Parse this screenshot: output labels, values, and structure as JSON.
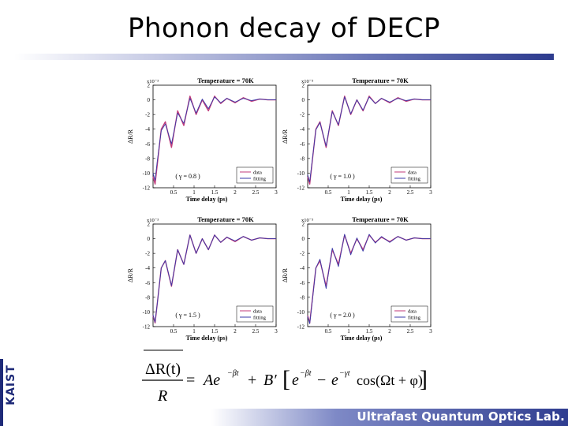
{
  "slide": {
    "title": "Phonon decay of DECP",
    "side_label": "KAIST",
    "footer": "Ultrafast Quantum Optics Lab."
  },
  "figure": {
    "panel_title": "Temperature = 70K",
    "xlabel": "Time delay (ps)",
    "ylabel": "ΔR/R",
    "exponent": "x10⁻³",
    "x_ticks": [
      "0.5",
      "1",
      "1.5",
      "2",
      "2.5",
      "3"
    ],
    "y_ticks": [
      "2",
      "0",
      "-2",
      "-4",
      "-6",
      "-8",
      "-10",
      "-12"
    ],
    "panels": [
      {
        "gamma_label": "( γ = 0.8 )",
        "legend": [
          "data",
          "fitting"
        ]
      },
      {
        "gamma_label": "( γ = 1.0 )",
        "legend": [
          "data",
          "fitting"
        ]
      },
      {
        "gamma_label": "( γ = 1.5 )",
        "legend": [
          "data",
          "fitting"
        ]
      },
      {
        "gamma_label": "( γ = 2.0 )",
        "legend": [
          "data",
          "fitting"
        ]
      }
    ]
  },
  "chart_data": [
    {
      "type": "line",
      "title": "Temperature = 70K",
      "xlabel": "Time delay (ps)",
      "ylabel": "ΔR/R (x10⁻³)",
      "xlim": [
        0,
        3
      ],
      "ylim": [
        -12,
        2
      ],
      "annotation": "( γ = 0.8 )",
      "series": [
        {
          "name": "data",
          "color": "#c03a7a",
          "x": [
            0.0,
            0.05,
            0.1,
            0.2,
            0.3,
            0.45,
            0.6,
            0.75,
            0.9,
            1.05,
            1.2,
            1.35,
            1.5,
            1.65,
            1.8,
            2.0,
            2.2,
            2.4,
            2.6,
            2.8,
            3.0
          ],
          "y": [
            -10.5,
            -11.5,
            -9.0,
            -4.0,
            -3.0,
            -6.5,
            -1.5,
            -3.5,
            0.5,
            -2.0,
            0.0,
            -1.5,
            0.5,
            -0.5,
            0.2,
            -0.4,
            0.3,
            -0.2,
            0.1,
            0.0,
            0.0
          ]
        },
        {
          "name": "fitting",
          "color": "#3a3aa8",
          "x": [
            0.0,
            0.05,
            0.1,
            0.2,
            0.3,
            0.45,
            0.6,
            0.75,
            0.9,
            1.05,
            1.2,
            1.35,
            1.5,
            1.65,
            1.8,
            2.0,
            2.2,
            2.4,
            2.6,
            2.8,
            3.0
          ],
          "y": [
            -10.0,
            -11.0,
            -8.5,
            -4.2,
            -3.3,
            -6.0,
            -1.8,
            -3.2,
            0.2,
            -1.8,
            0.1,
            -1.2,
            0.4,
            -0.4,
            0.2,
            -0.3,
            0.2,
            -0.1,
            0.1,
            0.0,
            0.0
          ]
        }
      ]
    },
    {
      "type": "line",
      "title": "Temperature = 70K",
      "xlabel": "Time delay (ps)",
      "ylabel": "ΔR/R (x10⁻³)",
      "xlim": [
        0,
        3
      ],
      "ylim": [
        -12,
        2
      ],
      "annotation": "( γ = 1.0 )",
      "series": [
        {
          "name": "data",
          "color": "#c03a7a",
          "x": [
            0.0,
            0.05,
            0.1,
            0.2,
            0.3,
            0.45,
            0.6,
            0.75,
            0.9,
            1.05,
            1.2,
            1.35,
            1.5,
            1.65,
            1.8,
            2.0,
            2.2,
            2.4,
            2.6,
            2.8,
            3.0
          ],
          "y": [
            -10.5,
            -11.5,
            -9.0,
            -4.0,
            -3.0,
            -6.5,
            -1.5,
            -3.5,
            0.5,
            -2.0,
            0.0,
            -1.5,
            0.5,
            -0.5,
            0.2,
            -0.4,
            0.3,
            -0.2,
            0.1,
            0.0,
            0.0
          ]
        },
        {
          "name": "fitting",
          "color": "#3a3aa8",
          "x": [
            0.0,
            0.05,
            0.1,
            0.2,
            0.3,
            0.45,
            0.6,
            0.75,
            0.9,
            1.05,
            1.2,
            1.35,
            1.5,
            1.65,
            1.8,
            2.0,
            2.2,
            2.4,
            2.6,
            2.8,
            3.0
          ],
          "y": [
            -10.2,
            -11.2,
            -8.8,
            -4.1,
            -3.1,
            -6.3,
            -1.6,
            -3.4,
            0.4,
            -1.9,
            0.0,
            -1.4,
            0.4,
            -0.5,
            0.2,
            -0.3,
            0.2,
            -0.1,
            0.1,
            0.0,
            0.0
          ]
        }
      ]
    },
    {
      "type": "line",
      "title": "Temperature = 70K",
      "xlabel": "Time delay (ps)",
      "ylabel": "ΔR/R (x10⁻³)",
      "xlim": [
        0,
        3
      ],
      "ylim": [
        -12,
        2
      ],
      "annotation": "( γ = 1.5 )",
      "series": [
        {
          "name": "data",
          "color": "#c03a7a",
          "x": [
            0.0,
            0.05,
            0.1,
            0.2,
            0.3,
            0.45,
            0.6,
            0.75,
            0.9,
            1.05,
            1.2,
            1.35,
            1.5,
            1.65,
            1.8,
            2.0,
            2.2,
            2.4,
            2.6,
            2.8,
            3.0
          ],
          "y": [
            -10.5,
            -11.5,
            -9.0,
            -4.0,
            -3.0,
            -6.5,
            -1.5,
            -3.5,
            0.5,
            -2.0,
            0.0,
            -1.5,
            0.5,
            -0.5,
            0.2,
            -0.4,
            0.3,
            -0.2,
            0.1,
            0.0,
            0.0
          ]
        },
        {
          "name": "fitting",
          "color": "#3a3aa8",
          "x": [
            0.0,
            0.05,
            0.1,
            0.2,
            0.3,
            0.45,
            0.6,
            0.75,
            0.9,
            1.05,
            1.2,
            1.35,
            1.5,
            1.65,
            1.8,
            2.0,
            2.2,
            2.4,
            2.6,
            2.8,
            3.0
          ],
          "y": [
            -10.4,
            -11.4,
            -9.0,
            -4.0,
            -3.0,
            -6.4,
            -1.5,
            -3.5,
            0.5,
            -2.0,
            0.0,
            -1.5,
            0.5,
            -0.5,
            0.2,
            -0.3,
            0.3,
            -0.2,
            0.1,
            0.0,
            0.0
          ]
        }
      ]
    },
    {
      "type": "line",
      "title": "Temperature = 70K",
      "xlabel": "Time delay (ps)",
      "ylabel": "ΔR/R (x10⁻³)",
      "xlim": [
        0,
        3
      ],
      "ylim": [
        -12,
        2
      ],
      "annotation": "( γ = 2.0 )",
      "series": [
        {
          "name": "data",
          "color": "#c03a7a",
          "x": [
            0.0,
            0.05,
            0.1,
            0.2,
            0.3,
            0.45,
            0.6,
            0.75,
            0.9,
            1.05,
            1.2,
            1.35,
            1.5,
            1.65,
            1.8,
            2.0,
            2.2,
            2.4,
            2.6,
            2.8,
            3.0
          ],
          "y": [
            -10.5,
            -11.5,
            -9.0,
            -4.0,
            -3.0,
            -6.5,
            -1.5,
            -3.5,
            0.5,
            -2.0,
            0.0,
            -1.5,
            0.5,
            -0.5,
            0.2,
            -0.4,
            0.3,
            -0.2,
            0.1,
            0.0,
            0.0
          ]
        },
        {
          "name": "fitting",
          "color": "#3a3aa8",
          "x": [
            0.0,
            0.05,
            0.1,
            0.2,
            0.3,
            0.45,
            0.6,
            0.75,
            0.9,
            1.05,
            1.2,
            1.35,
            1.5,
            1.65,
            1.8,
            2.0,
            2.2,
            2.4,
            2.6,
            2.8,
            3.0
          ],
          "y": [
            -10.6,
            -11.6,
            -9.2,
            -4.0,
            -2.8,
            -6.8,
            -1.3,
            -3.8,
            0.6,
            -2.2,
            0.1,
            -1.7,
            0.6,
            -0.6,
            0.3,
            -0.5,
            0.3,
            -0.2,
            0.1,
            0.0,
            0.0
          ]
        }
      ]
    }
  ],
  "formula": {
    "lhs_num": "ΔR(t)",
    "lhs_den": "R",
    "eq": "=",
    "A": "Ae",
    "A_exp": "−βt",
    "plus": "+",
    "B": "B′",
    "e1": "e",
    "e1_exp": "−βt",
    "minus": "−",
    "e2": "e",
    "e2_exp": "−γt",
    "cos": "cos(Ωt + φ)"
  }
}
